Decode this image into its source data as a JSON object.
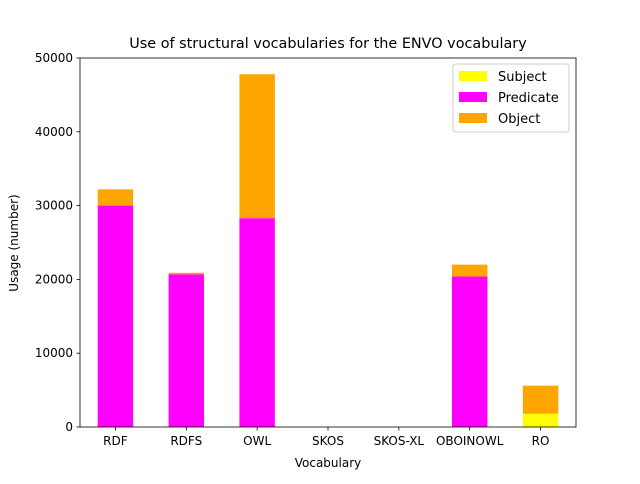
{
  "chart_data": {
    "type": "bar",
    "stacked": true,
    "title": "Use of structural vocabularies for the ENVO vocabulary",
    "xlabel": "Vocabulary",
    "ylabel": "Usage (number)",
    "ylim": [
      0,
      50000
    ],
    "yticks": [
      0,
      10000,
      20000,
      30000,
      40000,
      50000
    ],
    "categories": [
      "RDF",
      "RDFS",
      "OWL",
      "SKOS",
      "SKOS-XL",
      "OBOINOWL",
      "RO"
    ],
    "series": [
      {
        "name": "Subject",
        "color": "#ffff00",
        "values": [
          0,
          0,
          0,
          0,
          0,
          0,
          1800
        ]
      },
      {
        "name": "Predicate",
        "color": "#ff00ff",
        "values": [
          30000,
          20700,
          28300,
          0,
          0,
          20400,
          0
        ]
      },
      {
        "name": "Object",
        "color": "#ffa500",
        "values": [
          2200,
          200,
          19500,
          0,
          0,
          1600,
          3800
        ]
      }
    ],
    "legend_position": "top-right",
    "grid": false
  }
}
